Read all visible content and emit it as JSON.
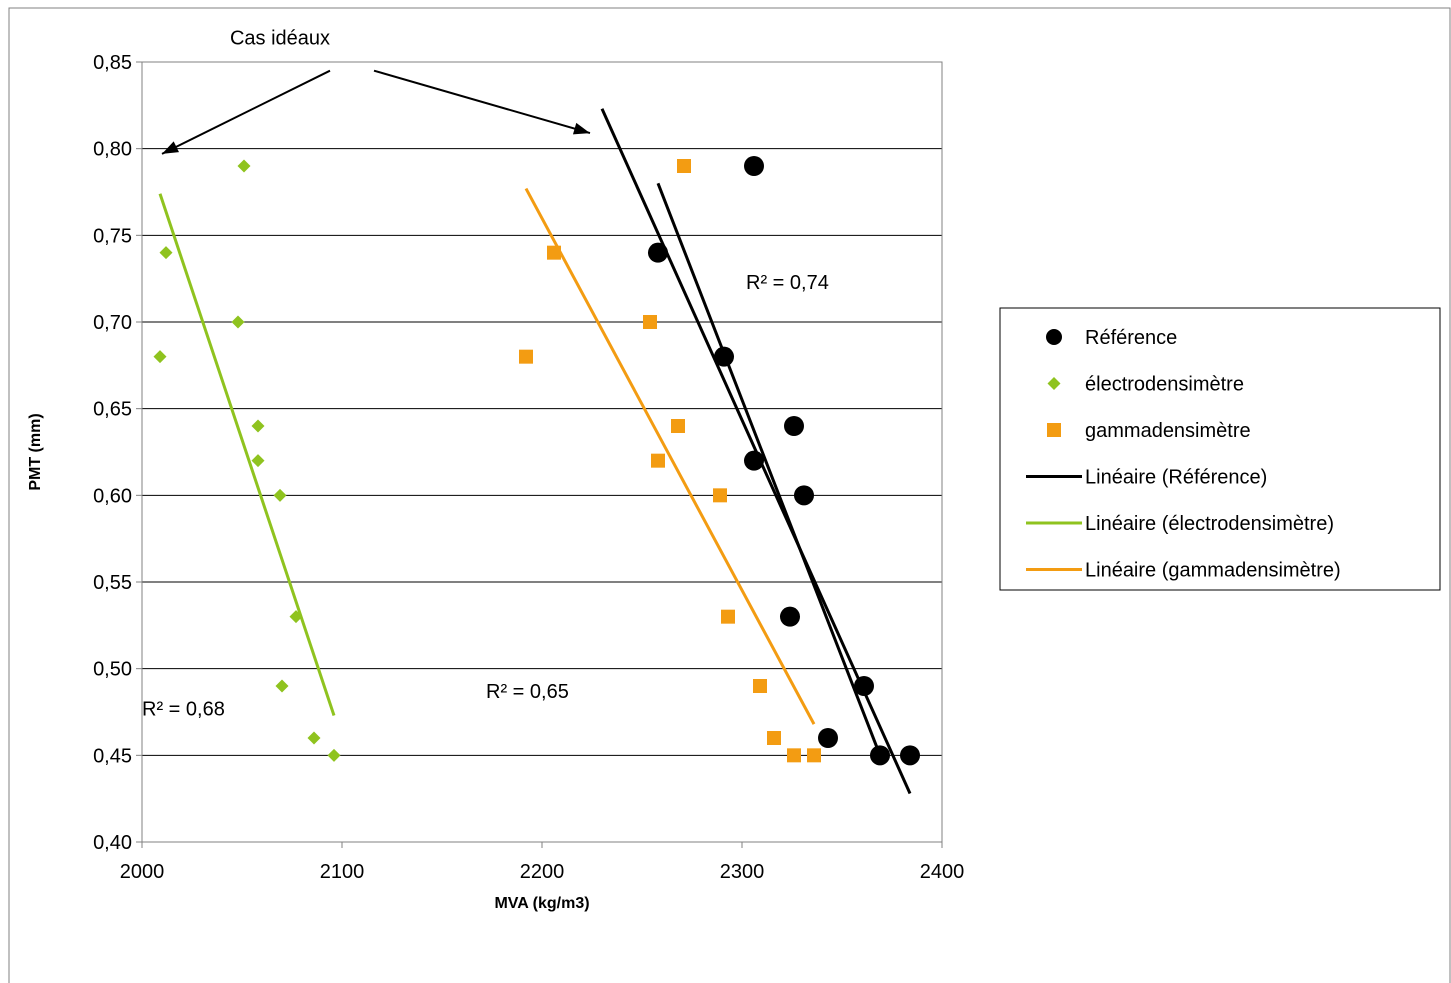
{
  "chart_data": {
    "type": "scatter",
    "xlabel": "MVA (kg/m3)",
    "ylabel": "PMT (mm)",
    "xlim": [
      2000,
      2400
    ],
    "ylim": [
      0.4,
      0.85
    ],
    "x_ticks": [
      "2000",
      "2100",
      "2200",
      "2300",
      "2400"
    ],
    "y_ticks": [
      "0,40",
      "0,45",
      "0,50",
      "0,55",
      "0,60",
      "0,65",
      "0,70",
      "0,75",
      "0,80",
      "0,85"
    ],
    "grid": "horizontal",
    "legend_position": "right",
    "series": [
      {
        "name": "Référence",
        "marker": "circle",
        "color": "#000000",
        "points": [
          [
            2306,
            0.79
          ],
          [
            2258,
            0.74
          ],
          [
            2291,
            0.68
          ],
          [
            2326,
            0.64
          ],
          [
            2306,
            0.62
          ],
          [
            2331,
            0.6
          ],
          [
            2324,
            0.53
          ],
          [
            2361,
            0.49
          ],
          [
            2343,
            0.46
          ],
          [
            2369,
            0.45
          ],
          [
            2384,
            0.45
          ]
        ]
      },
      {
        "name": "électrodensimètre",
        "marker": "diamond",
        "color": "#8FC31F",
        "points": [
          [
            2051,
            0.79
          ],
          [
            2012,
            0.74
          ],
          [
            2048,
            0.7
          ],
          [
            2009,
            0.68
          ],
          [
            2058,
            0.64
          ],
          [
            2058,
            0.62
          ],
          [
            2069,
            0.6
          ],
          [
            2077,
            0.53
          ],
          [
            2070,
            0.49
          ],
          [
            2086,
            0.46
          ],
          [
            2096,
            0.45
          ]
        ]
      },
      {
        "name": "gammadensimètre",
        "marker": "square",
        "color": "#F39C12",
        "points": [
          [
            2271,
            0.79
          ],
          [
            2206,
            0.74
          ],
          [
            2254,
            0.7
          ],
          [
            2192,
            0.68
          ],
          [
            2268,
            0.64
          ],
          [
            2258,
            0.62
          ],
          [
            2289,
            0.6
          ],
          [
            2293,
            0.53
          ],
          [
            2309,
            0.49
          ],
          [
            2316,
            0.46
          ],
          [
            2326,
            0.45
          ],
          [
            2336,
            0.45
          ]
        ]
      }
    ],
    "trendlines": [
      {
        "name": "Linéaire (Référence)",
        "color": "#000000",
        "x": [
          2258,
          2369
        ],
        "y": [
          0.78,
          0.45
        ]
      },
      {
        "name": "Linéaire (Référence)",
        "color": "#000000",
        "x": [
          2230,
          2384
        ],
        "y": [
          0.823,
          0.428
        ]
      },
      {
        "name": "Linéaire (électrodensimètre)",
        "color": "#8FC31F",
        "x": [
          2009,
          2096
        ],
        "y": [
          0.774,
          0.473
        ]
      },
      {
        "name": "Linéaire (gammadensimètre)",
        "color": "#F39C12",
        "x": [
          2192,
          2336
        ],
        "y": [
          0.777,
          0.468
        ]
      }
    ],
    "annotations": [
      {
        "text": "R² = 0,74",
        "x": 2302,
        "y": 0.719
      },
      {
        "text": "R² = 0,68",
        "x": 2000,
        "y": 0.473
      },
      {
        "text": "R² = 0,65",
        "x": 2172,
        "y": 0.483
      },
      {
        "text": "Cas idéaux",
        "x": 2069,
        "y": 0.86
      }
    ],
    "arrows": [
      {
        "from": [
          2094,
          0.845
        ],
        "to": [
          2010,
          0.797
        ]
      },
      {
        "from": [
          2116,
          0.845
        ],
        "to": [
          2224,
          0.809
        ]
      }
    ],
    "legend": [
      {
        "label": "Référence",
        "marker": "circle",
        "color": "#000000"
      },
      {
        "label": "électrodensimètre",
        "marker": "diamond",
        "color": "#8FC31F"
      },
      {
        "label": "gammadensimètre",
        "marker": "square",
        "color": "#F39C12"
      },
      {
        "label": "Linéaire (Référence)",
        "marker": "line",
        "color": "#000000"
      },
      {
        "label": "Linéaire (électrodensimètre)",
        "marker": "line",
        "color": "#8FC31F"
      },
      {
        "label": "Linéaire (gammadensimètre)",
        "marker": "line",
        "color": "#F39C12"
      }
    ]
  }
}
